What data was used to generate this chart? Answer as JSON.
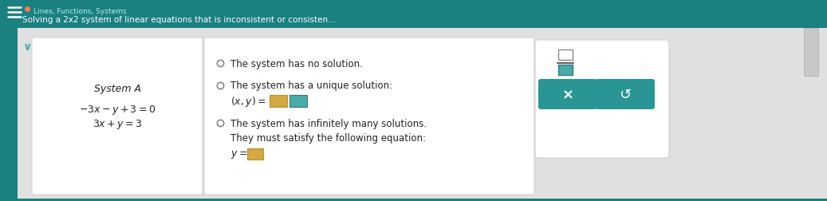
{
  "bg_dark": "#1a8080",
  "bg_light": "#e0e0e0",
  "teal_btn": "#2a9595",
  "header_text": "Lines, Functions, Systems",
  "subtitle_text": "Solving a 2x2 system of linear equations that is inconsistent or consisten...",
  "system_label": "System A",
  "eq1": "$-3x-y+3=0$",
  "eq2": "$3x+y=3$",
  "option1": "The system has no solution.",
  "option2": "The system has a unique solution:",
  "option2c": "$(x, y) =$",
  "option3": "The system has infinitely many solutions.",
  "option3b": "They must satisfy the following equation:",
  "option3c": "$y=$",
  "text_color": "#222222",
  "input_yellow": "#d4a843",
  "input_teal": "#4aabab",
  "fig_width": 10.37,
  "fig_height": 2.53
}
